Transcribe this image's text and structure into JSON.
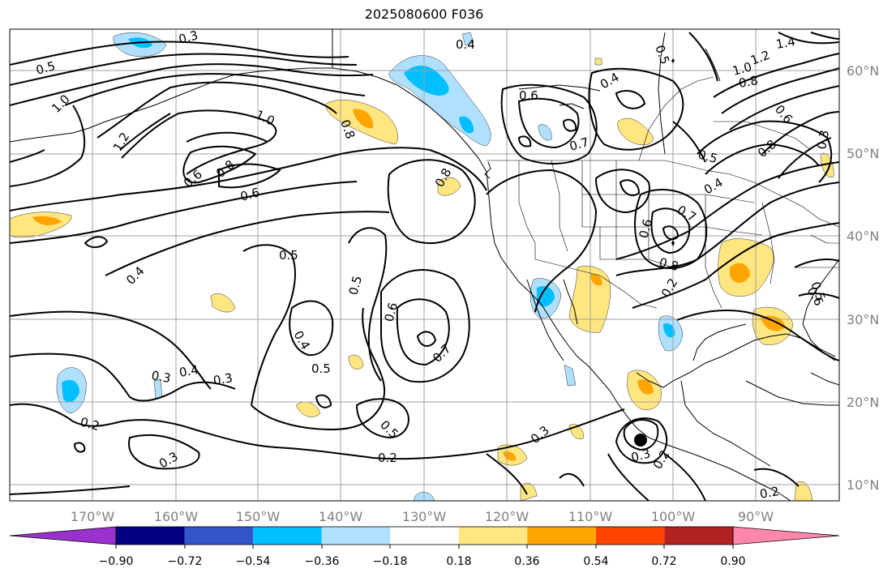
{
  "title": "2025080600 F036",
  "map": {
    "lat_labels": [
      "60°N",
      "50°N",
      "40°N",
      "30°N",
      "20°N",
      "10°N"
    ],
    "lon_labels": [
      "170°W",
      "160°W",
      "150°W",
      "140°W",
      "130°W",
      "120°W",
      "110°W",
      "100°W",
      "90°W"
    ],
    "contour_labels": [
      "0.3",
      "0.4",
      "0.5",
      "1.0",
      "1.2",
      "1.0",
      "0.6",
      "0.8",
      "0.6",
      "0.4",
      "0.5",
      "0.5",
      "0.6",
      "0.7",
      "0.5",
      "0.3",
      "0.4",
      "0.3",
      "0.4",
      "0.2",
      "0.3",
      "0.2",
      "0.5",
      "0.3",
      "0.8",
      "0.6",
      "0.7",
      "0.4",
      "0.7",
      "0.6",
      "0.8",
      "0.2",
      "0.3",
      "0.2",
      "0.5",
      "0.4",
      "0.8",
      "0.6",
      "1.4",
      "1.2",
      "1.0",
      "0.8",
      "0.6",
      "0.3",
      "0.8",
      "0.5",
      "0.2",
      "0.5"
    ]
  },
  "colorbar": {
    "ticks": [
      "−0.90",
      "−0.72",
      "−0.54",
      "−0.36",
      "−0.18",
      "0.18",
      "0.36",
      "0.54",
      "0.72",
      "0.90"
    ],
    "colors": [
      "#9932cc",
      "#000080",
      "#3355cc",
      "#00bfff",
      "#b0e0ff",
      "#ffffff",
      "#ffe680",
      "#ffa500",
      "#ff4500",
      "#b22222",
      "#ff88aa"
    ]
  },
  "colors": {
    "shade_positive_light": "#ffe680",
    "shade_positive_mid": "#ffa500",
    "shade_negative_light": "#b0e0ff",
    "shade_negative_mid": "#00bfff"
  }
}
